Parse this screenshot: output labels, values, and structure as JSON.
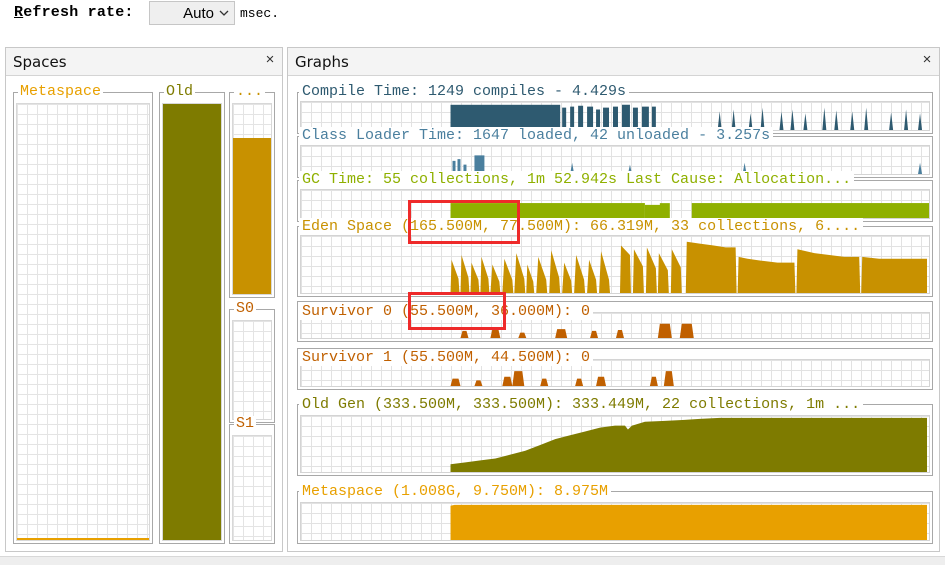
{
  "toolbar": {
    "refresh_label_first": "R",
    "refresh_label_rest": "efresh rate:",
    "refresh_value": "Auto",
    "unit": "msec."
  },
  "spaces_panel": {
    "title": "Spaces",
    "close_glyph": "×",
    "boxes": [
      {
        "label": "Metaspace",
        "color": "#e8a000",
        "fill_fraction": 0.005
      },
      {
        "label": "Old",
        "color": "#7e7b00",
        "fill_fraction": 1.0
      },
      {
        "label": "...",
        "color": "#c89100",
        "fill_fraction": 0.82
      },
      {
        "label": "S0",
        "color": "#c06000",
        "fill_fraction": 0.0
      },
      {
        "label": "S1",
        "color": "#c06000",
        "fill_fraction": 0.0
      }
    ]
  },
  "graphs_panel": {
    "title": "Graphs",
    "close_glyph": "×",
    "graphs": [
      {
        "id": "compile",
        "title": "Compile Time: 1249 compiles - 4.429s",
        "color": "#2e5a70"
      },
      {
        "id": "classloader",
        "title": "Class Loader Time: 1647 loaded, 42 unloaded - 3.257s",
        "color": "#4a7f9e"
      },
      {
        "id": "gc",
        "title": "GC Time: 55 collections, 1m 52.942s  Last Cause: Allocation...",
        "color": "#8fb000"
      },
      {
        "id": "eden",
        "title": "Eden Space (165.500M, 77.500M): 66.319M, 33 collections, 6....",
        "color": "#c89100"
      },
      {
        "id": "survivor0",
        "title": "Survivor 0 (55.500M, 36.000M): 0",
        "color": "#c06000"
      },
      {
        "id": "survivor1",
        "title": "Survivor 1 (55.500M, 44.500M): 0",
        "color": "#c06000"
      },
      {
        "id": "oldgen",
        "title": "Old Gen (333.500M, 333.500M): 333.449M, 22 collections, 1m ...",
        "color": "#7e7b00"
      },
      {
        "id": "metaspace",
        "title": "Metaspace (1.008G, 9.750M): 8.975M",
        "color": "#e8a000"
      }
    ]
  }
}
